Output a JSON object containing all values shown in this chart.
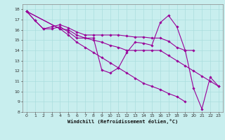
{
  "title": "",
  "xlabel": "Windchill (Refroidissement éolien,°C)",
  "ylabel": "",
  "bg_color": "#c8eeee",
  "line_color": "#990099",
  "grid_color": "#aadddd",
  "xlim": [
    -0.5,
    23.5
  ],
  "ylim": [
    8,
    18.5
  ],
  "xticks": [
    0,
    1,
    2,
    3,
    4,
    5,
    6,
    7,
    8,
    9,
    10,
    11,
    12,
    13,
    14,
    15,
    16,
    17,
    18,
    19,
    20,
    21,
    22,
    23
  ],
  "yticks": [
    8,
    9,
    10,
    11,
    12,
    13,
    14,
    15,
    16,
    17,
    18
  ],
  "series": [
    [
      17.8,
      16.9,
      16.1,
      16.1,
      16.3,
      15.8,
      15.2,
      15.2,
      15.2,
      12.1,
      11.8,
      12.3,
      13.8,
      14.8,
      14.7,
      14.5,
      16.7,
      17.4,
      16.3,
      14.0,
      10.3,
      8.3,
      11.4,
      10.5
    ],
    [
      17.8,
      16.9,
      16.1,
      16.3,
      16.5,
      16.2,
      15.8,
      15.5,
      15.5,
      15.5,
      15.5,
      15.5,
      15.4,
      15.3,
      15.3,
      15.2,
      15.2,
      14.9,
      14.3,
      14.0,
      14.0,
      null,
      null,
      null
    ],
    [
      17.8,
      null,
      null,
      null,
      16.1,
      16.0,
      15.5,
      15.2,
      15.0,
      14.8,
      14.5,
      14.3,
      14.0,
      14.0,
      14.0,
      14.0,
      14.0,
      13.5,
      13.0,
      12.5,
      12.0,
      11.5,
      11.0,
      10.5
    ],
    [
      17.8,
      null,
      null,
      null,
      16.1,
      15.5,
      14.8,
      14.3,
      13.8,
      13.3,
      12.8,
      12.3,
      11.8,
      11.3,
      10.8,
      10.5,
      10.2,
      9.8,
      9.5,
      9.0,
      null,
      null,
      null,
      null
    ]
  ]
}
